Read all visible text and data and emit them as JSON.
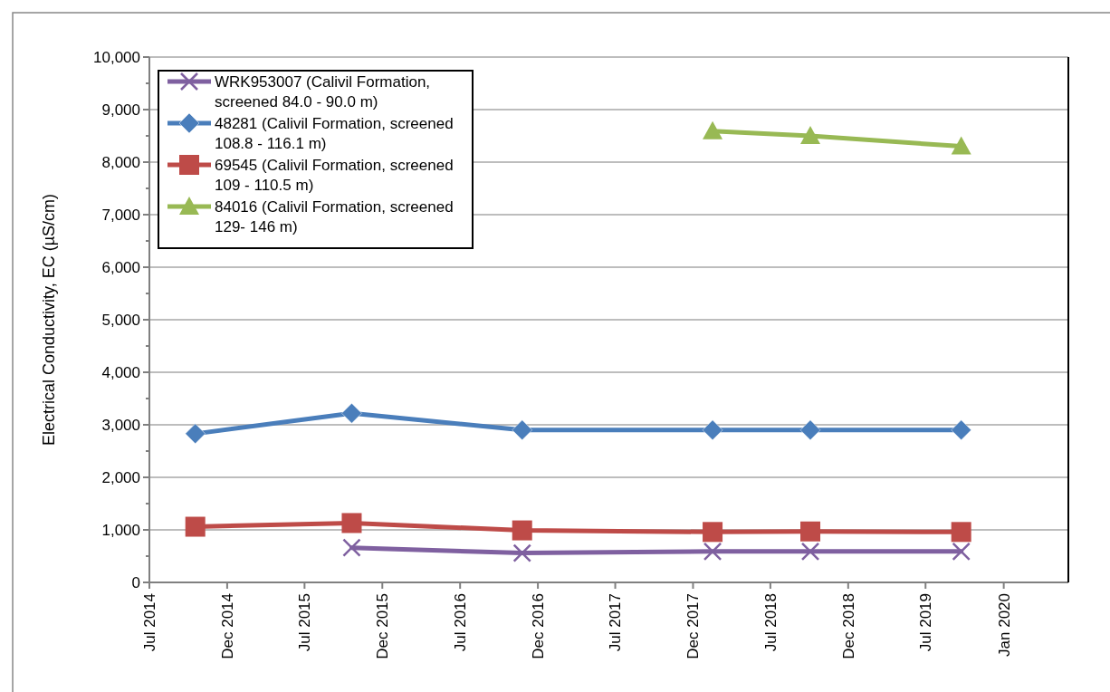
{
  "chart_data": {
    "type": "line",
    "ylabel": "Electrical Conductivity, EC (µS/cm)",
    "xlim": [
      "2014-07-01",
      "2020-06-01"
    ],
    "xticks": [
      {
        "value": "2014-07-01",
        "label": "Jul 2014"
      },
      {
        "value": "2014-12-31",
        "label": "Dec 2014"
      },
      {
        "value": "2015-07-01",
        "label": "Jul 2015"
      },
      {
        "value": "2015-12-31",
        "label": "Dec 2015"
      },
      {
        "value": "2016-07-01",
        "label": "Jul 2016"
      },
      {
        "value": "2016-12-31",
        "label": "Dec 2016"
      },
      {
        "value": "2017-07-01",
        "label": "Jul 2017"
      },
      {
        "value": "2017-12-31",
        "label": "Dec 2017"
      },
      {
        "value": "2018-07-01",
        "label": "Jul 2018"
      },
      {
        "value": "2018-12-31",
        "label": "Dec 2018"
      },
      {
        "value": "2019-07-01",
        "label": "Jul 2019"
      },
      {
        "value": "2020-01-01",
        "label": "Jan 2020"
      }
    ],
    "ylim": [
      0,
      10000
    ],
    "yticks": [
      {
        "value": 0,
        "label": "0"
      },
      {
        "value": 500,
        "label": null
      },
      {
        "value": 1000,
        "label": "1,000"
      },
      {
        "value": 1500,
        "label": null
      },
      {
        "value": 2000,
        "label": "2,000"
      },
      {
        "value": 2500,
        "label": null
      },
      {
        "value": 3000,
        "label": "3,000"
      },
      {
        "value": 3500,
        "label": null
      },
      {
        "value": 4000,
        "label": "4,000"
      },
      {
        "value": 4500,
        "label": null
      },
      {
        "value": 5000,
        "label": "5,000"
      },
      {
        "value": 5500,
        "label": null
      },
      {
        "value": 6000,
        "label": "6,000"
      },
      {
        "value": 6500,
        "label": null
      },
      {
        "value": 7000,
        "label": "7,000"
      },
      {
        "value": 7500,
        "label": null
      },
      {
        "value": 8000,
        "label": "8,000"
      },
      {
        "value": 8500,
        "label": null
      },
      {
        "value": 9000,
        "label": "9,000"
      },
      {
        "value": 9500,
        "label": null
      },
      {
        "value": 10000,
        "label": "10,000"
      }
    ],
    "grid": "y",
    "legend": "top left",
    "line_style": "solid",
    "series": [
      {
        "name": "WRK953007 (Calivil Formation, screened 84.0 - 90.0 m)",
        "color": "#7f60a0",
        "marker": "cross",
        "x": [
          "2015-10-20",
          "2016-11-24",
          "2018-02-15",
          "2018-10-03",
          "2019-09-23"
        ],
        "values": [
          660,
          560,
          590,
          590,
          590
        ]
      },
      {
        "name": "48281 (Calivil Formation, screened 108.8 - 116.1 m)",
        "color": "#4a7ebb",
        "marker": "diamond",
        "x": [
          "2014-10-17",
          "2015-10-20",
          "2016-11-24",
          "2018-02-15",
          "2018-10-03",
          "2019-09-23"
        ],
        "values": [
          2830,
          3220,
          2900,
          2900,
          2900,
          2900
        ]
      },
      {
        "name": "69545 (Calivil Formation, screened 109 - 110.5 m)",
        "color": "#be4b48",
        "marker": "square",
        "x": [
          "2014-10-17",
          "2015-10-20",
          "2016-11-24",
          "2018-02-15",
          "2018-10-03",
          "2019-09-23"
        ],
        "values": [
          1060,
          1130,
          990,
          960,
          970,
          960
        ]
      },
      {
        "name": "84016 (Calivil Formation, screened 129- 146 m)",
        "color": "#98b954",
        "marker": "triangle",
        "x": [
          "2018-02-15",
          "2018-10-03",
          "2019-09-23"
        ],
        "values": [
          8590,
          8500,
          8300
        ]
      }
    ]
  }
}
